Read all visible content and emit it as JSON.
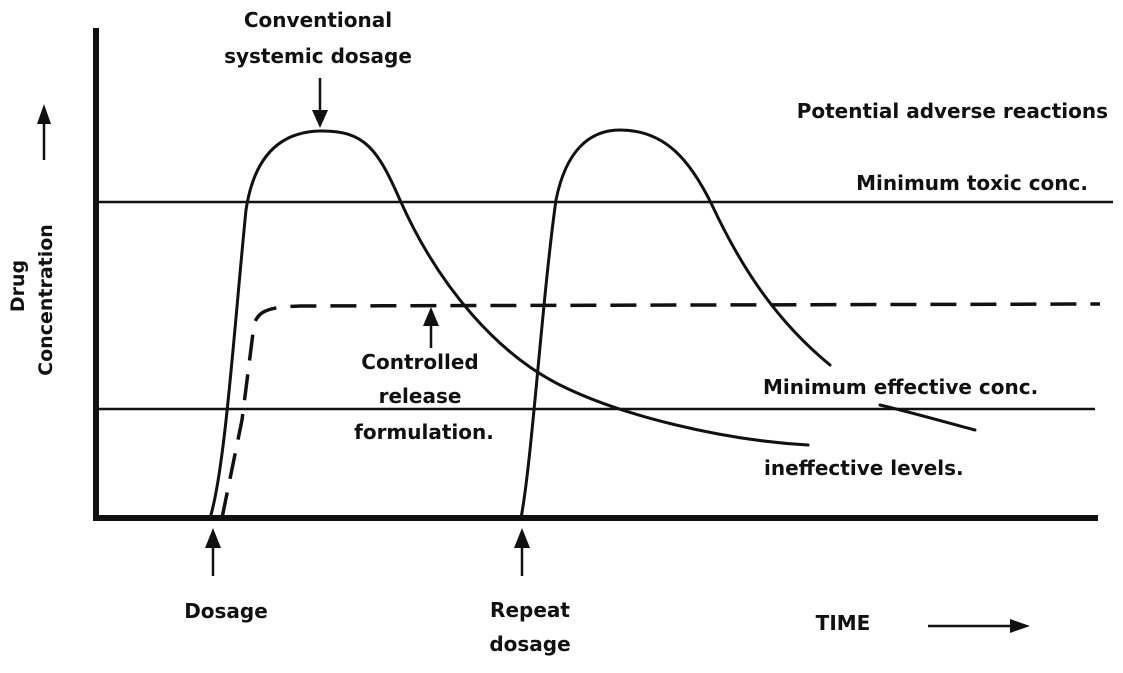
{
  "labels": {
    "conventional_line1": "Conventional",
    "conventional_line2": "systemic dosage",
    "adverse": "Potential adverse reactions",
    "min_toxic": "Minimum toxic conc.",
    "controlled_line1": "Controlled",
    "controlled_line2": "release",
    "controlled_line3": "formulation.",
    "min_effective": "Minimum effective conc.",
    "ineffective": "ineffective levels.",
    "dosage": "Dosage",
    "repeat_line1": "Repeat",
    "repeat_line2": "dosage",
    "time": "TIME",
    "y_line1": "Drug",
    "y_line2": "Concentration"
  }
}
